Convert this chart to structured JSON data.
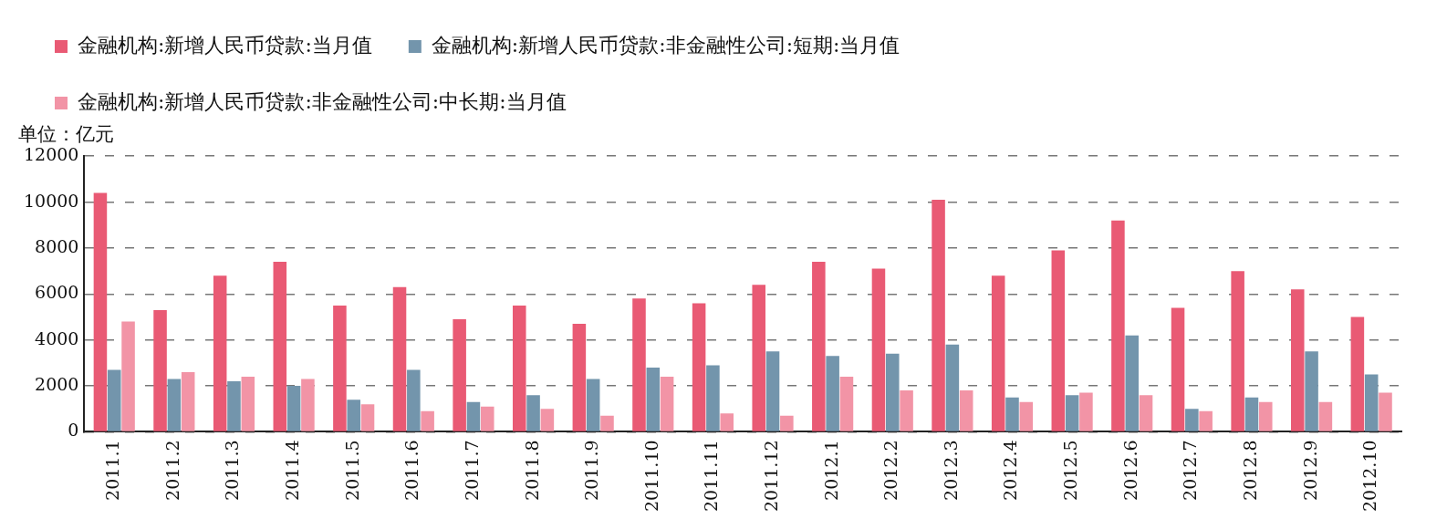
{
  "chart_data": {
    "type": "bar",
    "ylabel": "单位：亿元",
    "categories": [
      "2011.1",
      "2011.2",
      "2011.3",
      "2011.4",
      "2011.5",
      "2011.6",
      "2011.7",
      "2011.8",
      "2011.9",
      "2011.10",
      "2011.11",
      "2011.12",
      "2012.1",
      "2012.2",
      "2012.3",
      "2012.4",
      "2012.5",
      "2012.6",
      "2012.7",
      "2012.8",
      "2012.9",
      "2012.10"
    ],
    "series": [
      {
        "name": "金融机构:新增人民币贷款:当月值",
        "color": "#e95a74",
        "values": [
          10400,
          5300,
          6800,
          7400,
          5500,
          6300,
          4900,
          5500,
          4700,
          5800,
          5600,
          6400,
          7400,
          7100,
          10100,
          6800,
          7900,
          9200,
          5400,
          7000,
          6200,
          5000
        ]
      },
      {
        "name": "金融机构:新增人民币贷款:非金融性公司:短期:当月值",
        "color": "#7395ac",
        "values": [
          2700,
          2300,
          2200,
          2000,
          1400,
          2700,
          1300,
          1600,
          2300,
          2800,
          2900,
          3500,
          3300,
          3400,
          3800,
          1500,
          1600,
          4200,
          1000,
          1500,
          3500,
          2500
        ]
      },
      {
        "name": "金融机构:新增人民币贷款:非金融性公司:中长期:当月值",
        "color": "#f294a6",
        "values": [
          4800,
          2600,
          2400,
          2300,
          1200,
          900,
          1100,
          1000,
          700,
          2400,
          800,
          700,
          2400,
          1800,
          1800,
          1300,
          1700,
          1600,
          900,
          1300,
          1300,
          1700
        ]
      }
    ],
    "ylim": [
      0,
      12000
    ],
    "yticks": [
      0,
      2000,
      4000,
      6000,
      8000,
      10000,
      12000
    ],
    "grid": "y",
    "legend": "top"
  }
}
